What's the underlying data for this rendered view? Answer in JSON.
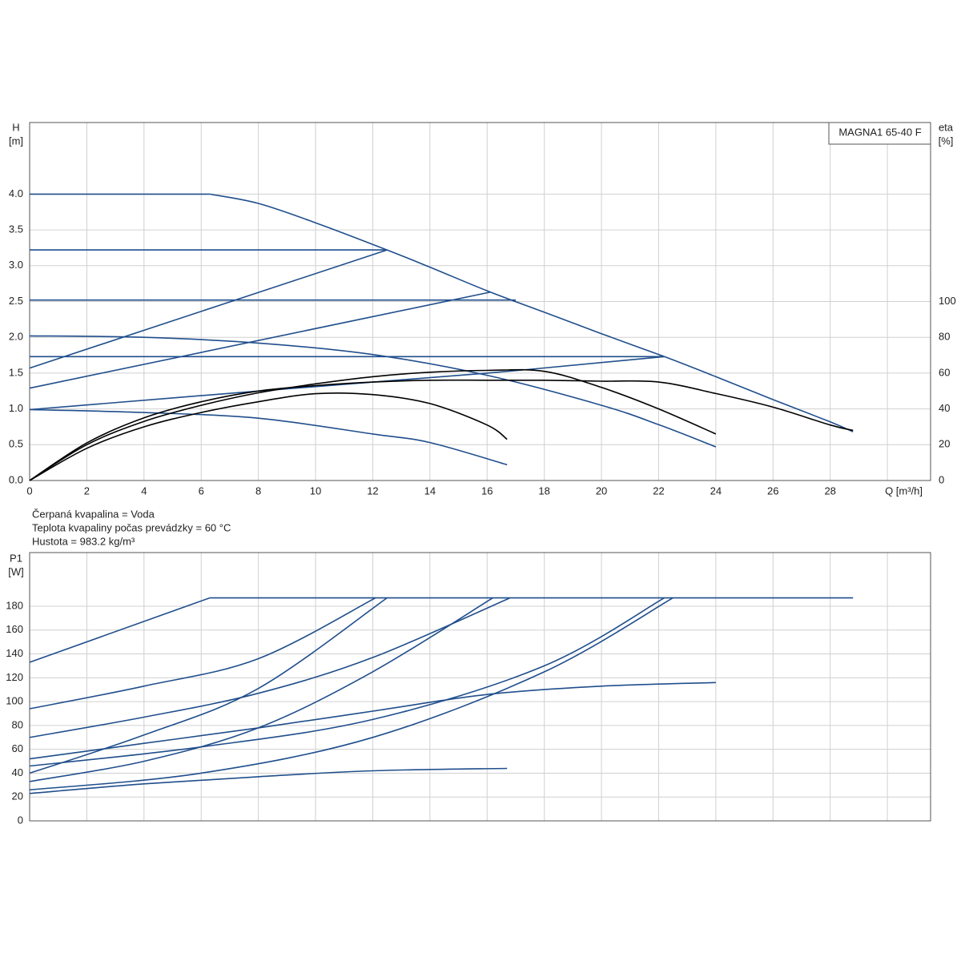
{
  "chart_data": [
    {
      "type": "line",
      "label": "MAGNA1 65-40 F",
      "ylabel": "H",
      "yunit": "[m]",
      "y2label": "eta",
      "y2unit": "[%]",
      "xlim": [
        0,
        31.51
      ],
      "xticks": [
        0,
        2,
        4,
        6,
        8,
        10,
        12,
        14,
        16,
        18,
        20,
        22,
        24,
        26,
        28,
        {
          "value": 30,
          "label": "Q [m³/h]"
        }
      ],
      "ylim": [
        0,
        5
      ],
      "yticks": [
        0,
        0.5,
        1,
        1.5,
        2,
        2.5,
        3,
        3.5,
        4
      ],
      "yticks_labels": [
        "0.0",
        "0.5",
        "1.0",
        "1.5",
        "2.0",
        "2.5",
        "3.0",
        "3.5",
        "4.0"
      ],
      "y2lim": [
        0,
        200
      ],
      "y2ticks": [
        0,
        20,
        40,
        60,
        80,
        100
      ],
      "grid": true,
      "annotations": [
        "Čerpaná kvapalina = Voda",
        "Teplota kvapaliny počas prevádzky = 60 °C",
        "Hustota = 983.2 kg/m³"
      ],
      "series": [
        {
          "color": "#1f4e8c",
          "x": [
            0,
            6.3
          ],
          "values": [
            4.0,
            4.0
          ]
        },
        {
          "color": "#1f4e8c",
          "x": [
            6.3,
            8,
            10,
            12.5,
            14,
            16,
            18,
            20,
            22.2,
            24,
            26,
            28,
            28.8
          ],
          "values": [
            4.0,
            3.87,
            3.6,
            3.22,
            2.98,
            2.65,
            2.35,
            2.05,
            1.73,
            1.45,
            1.13,
            0.82,
            0.68
          ]
        },
        {
          "color": "#1f4e8c",
          "x": [
            0,
            12.5
          ],
          "values": [
            3.22,
            3.22
          ]
        },
        {
          "color": "#1f4e8c",
          "x": [
            0,
            17
          ],
          "values": [
            2.52,
            2.52
          ]
        },
        {
          "color": "#1f4e8c",
          "x": [
            0,
            22.2
          ],
          "values": [
            1.73,
            1.73
          ]
        },
        {
          "color": "#1f4e8c",
          "x": [
            0,
            12.5
          ],
          "values": [
            1.57,
            3.22
          ]
        },
        {
          "color": "#1f4e8c",
          "x": [
            0,
            16.1
          ],
          "values": [
            1.29,
            2.63
          ]
        },
        {
          "color": "#1f4e8c",
          "x": [
            0,
            8,
            16,
            22.2
          ],
          "values": [
            0.99,
            1.25,
            1.5,
            1.73
          ]
        },
        {
          "color": "#1f4e8c",
          "x": [
            0,
            4,
            8,
            12,
            16,
            20,
            22,
            24
          ],
          "values": [
            2.02,
            2.0,
            1.92,
            1.76,
            1.47,
            1.05,
            0.78,
            0.47
          ]
        },
        {
          "color": "#1f4e8c",
          "x": [
            0,
            4,
            8,
            12,
            14,
            16.7
          ],
          "values": [
            0.99,
            0.95,
            0.87,
            0.65,
            0.53,
            0.22
          ]
        },
        {
          "color": "#000000",
          "axis": "y2",
          "x": [
            0,
            2,
            4,
            6,
            8,
            10,
            12,
            14,
            16,
            16.7
          ],
          "values": [
            0,
            18,
            30,
            38,
            44,
            48.5,
            48,
            43,
            31,
            23
          ]
        },
        {
          "color": "#000000",
          "axis": "y2",
          "x": [
            0,
            2,
            4,
            6,
            8,
            10,
            12,
            14,
            16,
            18,
            20,
            22,
            24
          ],
          "values": [
            0,
            20,
            33,
            42,
            49,
            54,
            58,
            60.5,
            61.5,
            61,
            52,
            40,
            26
          ]
        },
        {
          "color": "#000000",
          "axis": "y2",
          "x": [
            0,
            2,
            4,
            6,
            8,
            10,
            12,
            14,
            16,
            18,
            20,
            22,
            24,
            26,
            28,
            28.8
          ],
          "values": [
            0,
            21,
            35,
            44,
            50,
            53,
            55,
            56,
            56,
            56,
            55.5,
            55,
            48.6,
            41,
            31,
            28
          ]
        }
      ]
    },
    {
      "type": "line",
      "ylabel": "P1",
      "yunit": "[W]",
      "xlim": [
        0,
        31.51
      ],
      "ylim": [
        0,
        225
      ],
      "yticks": [
        0,
        20,
        40,
        60,
        80,
        100,
        120,
        140,
        160,
        180
      ],
      "grid": true,
      "series": [
        {
          "color": "#1f4e8c",
          "x": [
            0,
            6.3
          ],
          "values": [
            133,
            187
          ]
        },
        {
          "color": "#1f4e8c",
          "x": [
            6.3,
            28.8
          ],
          "values": [
            187,
            187
          ]
        },
        {
          "color": "#1f4e8c",
          "x": [
            0,
            4,
            8,
            12.1
          ],
          "values": [
            94,
            113,
            136,
            187
          ]
        },
        {
          "color": "#1f4e8c",
          "x": [
            0,
            4,
            8,
            12.5
          ],
          "values": [
            40,
            72,
            111,
            187
          ]
        },
        {
          "color": "#1f4e8c",
          "x": [
            0,
            4,
            8,
            12,
            16.8
          ],
          "values": [
            70,
            87,
            107,
            137,
            187
          ]
        },
        {
          "color": "#1f4e8c",
          "x": [
            0,
            4,
            8,
            12,
            16.2
          ],
          "values": [
            33,
            50,
            78,
            125,
            187
          ]
        },
        {
          "color": "#1f4e8c",
          "x": [
            0,
            6,
            12,
            18,
            22.2
          ],
          "values": [
            46,
            62,
            85,
            130,
            187
          ]
        },
        {
          "color": "#1f4e8c",
          "x": [
            0,
            6,
            12,
            18,
            22.5
          ],
          "values": [
            26,
            40,
            70,
            125,
            187
          ]
        },
        {
          "color": "#1f4e8c",
          "x": [
            0,
            4,
            8,
            12,
            16,
            20,
            24
          ],
          "values": [
            52,
            65,
            78,
            92,
            106,
            113,
            116
          ]
        },
        {
          "color": "#1f4e8c",
          "x": [
            0,
            4,
            8,
            12,
            16.7
          ],
          "values": [
            23,
            31,
            37,
            42,
            44
          ]
        }
      ]
    }
  ]
}
